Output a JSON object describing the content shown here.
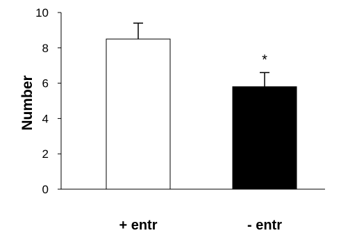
{
  "chart_data": {
    "type": "bar",
    "title": "",
    "xlabel": "",
    "ylabel": "Number",
    "ylim": [
      0,
      10
    ],
    "yticks": [
      "0",
      "2",
      "4",
      "6",
      "8",
      "10"
    ],
    "categories": [
      "+ entr",
      "- entr"
    ],
    "values": [
      8.5,
      5.8
    ],
    "errors": [
      0.9,
      0.8
    ],
    "bar_colors": [
      "#ffffff",
      "#000000"
    ],
    "annotations": [
      "",
      "*"
    ],
    "grid": false
  }
}
